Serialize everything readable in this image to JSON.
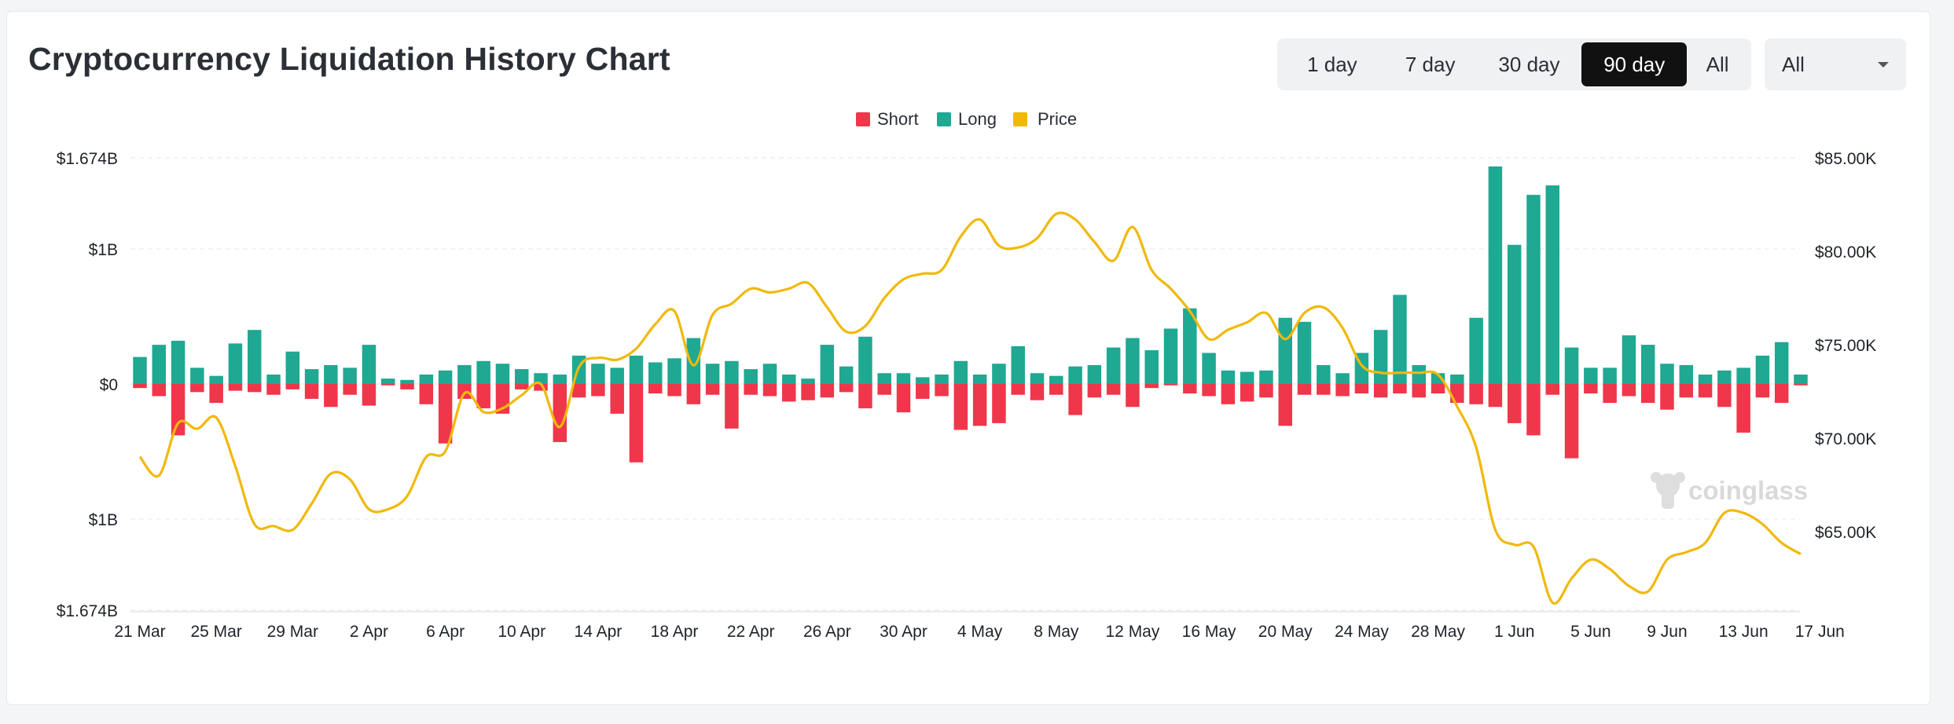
{
  "header": {
    "title": "Cryptocurrency Liquidation History Chart",
    "ranges": [
      "1 day",
      "7 day",
      "30 day",
      "90 day",
      "All"
    ],
    "active_range": "90 day",
    "filter": {
      "selected": "All",
      "icon": "chevron-down-icon"
    }
  },
  "watermark": {
    "text": "coinglass",
    "icon": "coinglass-logo-icon"
  },
  "colors": {
    "short": "#f0364a",
    "long": "#1fa892",
    "price": "#f0b90b"
  },
  "chart_data": {
    "type": "bar",
    "title": "",
    "legend": {
      "placement": "top-center",
      "entries": [
        "Short",
        "Long",
        "Price"
      ]
    },
    "y_left": {
      "tick_labels": [
        "$1.674B",
        "$1B",
        "$0",
        "$1B",
        "$1.674B"
      ],
      "tick_values": [
        1.674,
        1.0,
        0,
        -1.0,
        -1.674
      ],
      "range": [
        -1.674,
        1.674
      ],
      "unit": "billion USD",
      "note": "Long liquidations plotted upward, Short liquidations plotted downward"
    },
    "y_right": {
      "tick_labels": [
        "$85.00K",
        "$80.00K",
        "$75.00K",
        "$70.00K",
        "$65.00K"
      ],
      "tick_values": [
        85000,
        80000,
        75000,
        70000,
        65000
      ],
      "range": [
        60800,
        85000
      ]
    },
    "x_tick_labels": [
      "21 Mar",
      "25 Mar",
      "29 Mar",
      "2 Apr",
      "6 Apr",
      "10 Apr",
      "14 Apr",
      "18 Apr",
      "22 Apr",
      "26 Apr",
      "30 Apr",
      "4 May",
      "8 May",
      "12 May",
      "16 May",
      "20 May",
      "24 May",
      "28 May",
      "1 Jun",
      "5 Jun",
      "9 Jun",
      "13 Jun",
      "17 Jun"
    ],
    "x_tick_interval_days": 4,
    "grid": true,
    "series": [
      {
        "name": "Long",
        "values": [
          0.2,
          0.29,
          0.32,
          0.12,
          0.06,
          0.3,
          0.4,
          0.07,
          0.24,
          0.11,
          0.14,
          0.12,
          0.29,
          0.04,
          0.03,
          0.07,
          0.1,
          0.14,
          0.17,
          0.15,
          0.11,
          0.08,
          0.07,
          0.21,
          0.15,
          0.12,
          0.21,
          0.16,
          0.19,
          0.34,
          0.15,
          0.17,
          0.11,
          0.15,
          0.07,
          0.04,
          0.29,
          0.13,
          0.35,
          0.08,
          0.08,
          0.05,
          0.07,
          0.17,
          0.07,
          0.15,
          0.28,
          0.08,
          0.06,
          0.13,
          0.14,
          0.27,
          0.34,
          0.25,
          0.41,
          0.56,
          0.23,
          0.1,
          0.09,
          0.1,
          0.49,
          0.46,
          0.14,
          0.08,
          0.23,
          0.4,
          0.66,
          0.14,
          0.08,
          0.07,
          0.49,
          1.61,
          1.03,
          1.4,
          1.47,
          0.27,
          0.12,
          0.12,
          0.36,
          0.29,
          0.15,
          0.14,
          0.07,
          0.1,
          0.12,
          0.21,
          0.31,
          0.07
        ],
        "color": "#1fa892"
      },
      {
        "name": "Short",
        "values": [
          0.03,
          0.09,
          0.38,
          0.06,
          0.14,
          0.05,
          0.06,
          0.08,
          0.04,
          0.11,
          0.17,
          0.08,
          0.16,
          0.01,
          0.04,
          0.15,
          0.44,
          0.11,
          0.18,
          0.22,
          0.04,
          0.05,
          0.43,
          0.1,
          0.09,
          0.22,
          0.58,
          0.07,
          0.09,
          0.15,
          0.08,
          0.33,
          0.08,
          0.09,
          0.13,
          0.12,
          0.1,
          0.06,
          0.18,
          0.08,
          0.21,
          0.11,
          0.09,
          0.34,
          0.31,
          0.29,
          0.08,
          0.12,
          0.08,
          0.23,
          0.1,
          0.08,
          0.17,
          0.03,
          0.01,
          0.07,
          0.09,
          0.15,
          0.13,
          0.1,
          0.31,
          0.08,
          0.08,
          0.09,
          0.07,
          0.1,
          0.07,
          0.1,
          0.07,
          0.14,
          0.15,
          0.17,
          0.29,
          0.38,
          0.08,
          0.55,
          0.07,
          0.14,
          0.09,
          0.14,
          0.19,
          0.1,
          0.1,
          0.17,
          0.36,
          0.1,
          0.14,
          0.01
        ],
        "color": "#f0364a"
      },
      {
        "name": "Price",
        "axis": "right",
        "values": [
          69000,
          68000,
          70800,
          70500,
          71100,
          68500,
          65400,
          65300,
          65100,
          66500,
          68100,
          67800,
          66200,
          66200,
          66900,
          69000,
          69300,
          72400,
          71400,
          71600,
          72300,
          72900,
          70600,
          73800,
          74300,
          74200,
          74800,
          76100,
          76800,
          73900,
          76600,
          77200,
          78000,
          77800,
          78000,
          78300,
          77000,
          75700,
          76000,
          77500,
          78500,
          78800,
          79000,
          80800,
          81700,
          80300,
          80200,
          80700,
          82000,
          81700,
          80500,
          79500,
          81300,
          79000,
          78000,
          76800,
          75300,
          75800,
          76200,
          76700,
          75300,
          76700,
          77000,
          75900,
          73900,
          73500,
          73500,
          73500,
          73400,
          71700,
          69500,
          65100,
          64300,
          64200,
          61200,
          62500,
          63500,
          63000,
          62100,
          61800,
          63500,
          63900,
          64400,
          66000,
          66000,
          65400,
          64400,
          63800
        ],
        "color": "#f0b90b"
      }
    ]
  }
}
